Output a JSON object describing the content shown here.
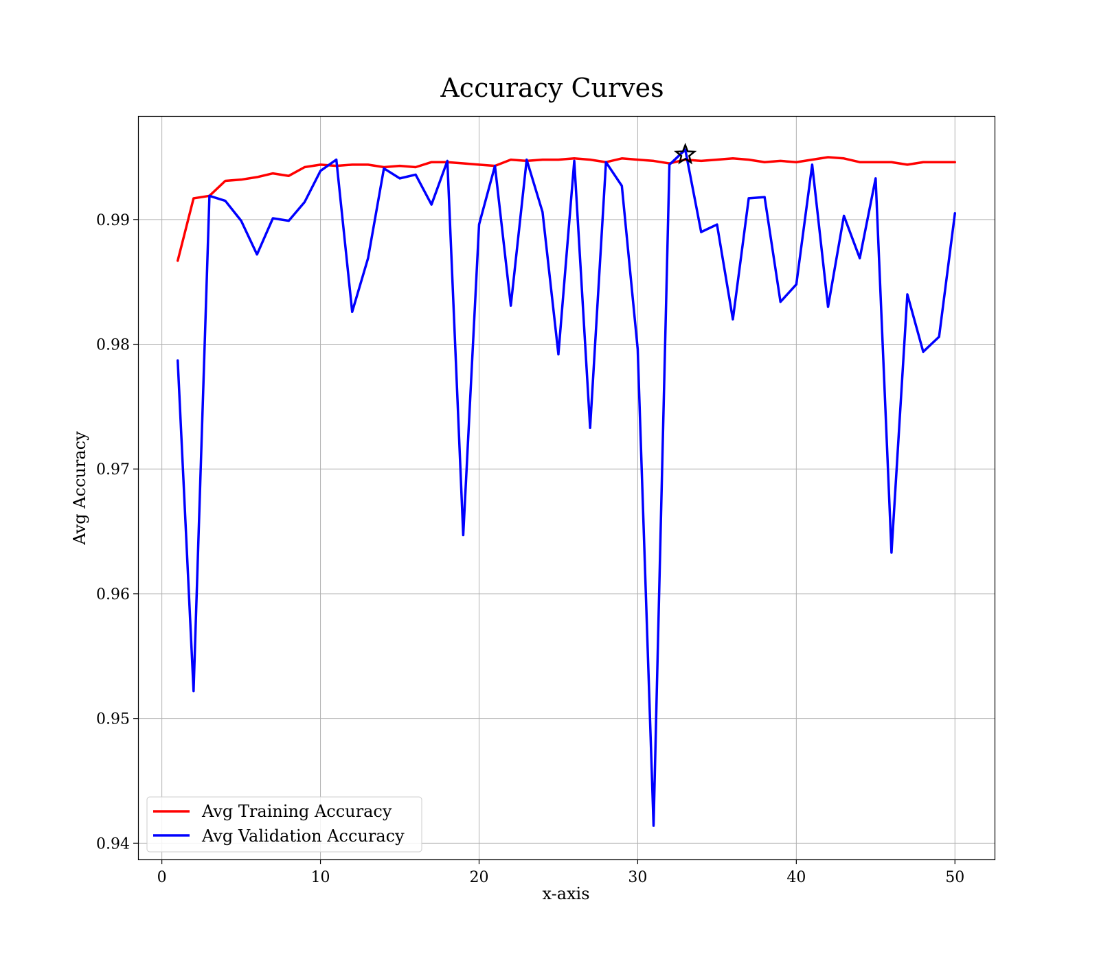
{
  "chart_data": {
    "type": "line",
    "title": "Accuracy Curves",
    "xlabel": "x-axis",
    "ylabel": "Avg Accuracy",
    "xlim": [
      -1.5,
      52.5
    ],
    "ylim": [
      0.9387,
      0.9983
    ],
    "x_ticks": [
      0,
      10,
      20,
      30,
      40,
      50
    ],
    "x_tick_labels": [
      "0",
      "10",
      "20",
      "30",
      "40",
      "50"
    ],
    "y_ticks": [
      0.94,
      0.95,
      0.96,
      0.97,
      0.98,
      0.99
    ],
    "y_tick_labels": [
      "0.94",
      "0.95",
      "0.96",
      "0.97",
      "0.98",
      "0.99"
    ],
    "grid": true,
    "legend_position": "lower-left",
    "x": [
      1,
      2,
      3,
      4,
      5,
      6,
      7,
      8,
      9,
      10,
      11,
      12,
      13,
      14,
      15,
      16,
      17,
      18,
      19,
      20,
      21,
      22,
      23,
      24,
      25,
      26,
      27,
      28,
      29,
      30,
      31,
      32,
      33,
      34,
      35,
      36,
      37,
      38,
      39,
      40,
      41,
      42,
      43,
      44,
      45,
      46,
      47,
      48,
      49,
      50
    ],
    "series": [
      {
        "name": "Avg Training Accuracy",
        "color": "#ff0000",
        "values": [
          0.9867,
          0.9917,
          0.9919,
          0.9931,
          0.9932,
          0.9934,
          0.9937,
          0.9935,
          0.9942,
          0.9944,
          0.9943,
          0.9944,
          0.9944,
          0.9942,
          0.9943,
          0.9942,
          0.9946,
          0.9946,
          0.9945,
          0.9944,
          0.9943,
          0.9948,
          0.9947,
          0.9948,
          0.9948,
          0.9949,
          0.9948,
          0.9946,
          0.9949,
          0.9948,
          0.9947,
          0.9945,
          0.9948,
          0.9947,
          0.9948,
          0.9949,
          0.9948,
          0.9946,
          0.9947,
          0.9946,
          0.9948,
          0.995,
          0.9949,
          0.9946,
          0.9946,
          0.9946,
          0.9944,
          0.9946,
          0.9946,
          0.9946
        ]
      },
      {
        "name": "Avg Validation Accuracy",
        "color": "#0000ff",
        "values": [
          0.9787,
          0.9522,
          0.9919,
          0.9915,
          0.9899,
          0.9872,
          0.9901,
          0.9899,
          0.9914,
          0.9939,
          0.9948,
          0.9826,
          0.9869,
          0.9941,
          0.9933,
          0.9936,
          0.9912,
          0.9947,
          0.9647,
          0.9896,
          0.9943,
          0.9831,
          0.9948,
          0.9906,
          0.9792,
          0.9947,
          0.9733,
          0.9946,
          0.9927,
          0.9796,
          0.9414,
          0.9944,
          0.9956,
          0.989,
          0.9896,
          0.982,
          0.9917,
          0.9918,
          0.9834,
          0.9848,
          0.9944,
          0.983,
          0.9903,
          0.9869,
          0.9933,
          0.9633,
          0.984,
          0.9794,
          0.9806,
          0.9905
        ]
      }
    ],
    "marker": {
      "symbol": "star",
      "x": 33,
      "y": 0.9952,
      "color": "#000000"
    }
  }
}
